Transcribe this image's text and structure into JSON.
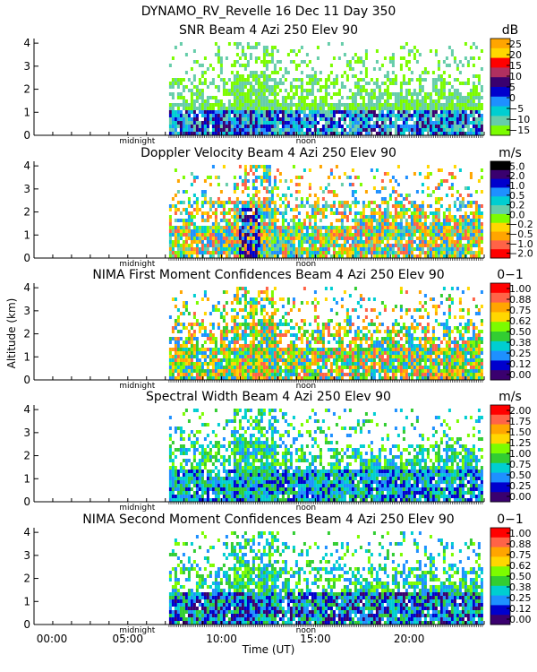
{
  "figure": {
    "title": "DYNAMO_RV_Revelle  16 Dec 11 Day 350",
    "ylabel": "Altitude (km)",
    "xlabel": "Time (UT)",
    "x_tick_labels": [
      "00:00",
      "05:00",
      "10:00",
      "15:00",
      "20:00"
    ],
    "x_marker_labels": [
      "midnight",
      "noon"
    ]
  },
  "chart_data": [
    {
      "type": "heatmap",
      "title": "SNR Beam 4 Azi 250 Elev 90",
      "unit": "dB",
      "y_ticks": [
        "0",
        "1",
        "2",
        "3",
        "4"
      ],
      "ylim": [
        0,
        4.2
      ],
      "xlim_hours": [
        0,
        24
      ],
      "data_start_hour": 7.2,
      "colorbar_labels": [
        "25",
        "20",
        "15",
        "10",
        "5",
        "0",
        "−5",
        "−10",
        "−15"
      ],
      "colorbar_colors": [
        "#ffa500",
        "#ffd700",
        "#ff0000",
        "#b03060",
        "#3a006f",
        "#0000cd",
        "#1e90ff",
        "#00ced1",
        "#66cdaa",
        "#7cfc00"
      ]
    },
    {
      "type": "heatmap",
      "title": "Doppler Velocity Beam 4 Azi 250 Elev 90",
      "unit": "m/s",
      "y_ticks": [
        "0",
        "1",
        "2",
        "3",
        "4"
      ],
      "ylim": [
        0,
        4.2
      ],
      "xlim_hours": [
        0,
        24
      ],
      "data_start_hour": 7.2,
      "colorbar_labels": [
        "5.0",
        "2.0",
        "1.0",
        "0.5",
        "0.2",
        "0.0",
        "−0.2",
        "−0.5",
        "−1.0",
        "−2.0"
      ],
      "colorbar_colors": [
        "#000000",
        "#3a006f",
        "#0000cd",
        "#1e90ff",
        "#00ced1",
        "#66cdaa",
        "#7cfc00",
        "#ffd700",
        "#ffa500",
        "#ff6347",
        "#ff0000"
      ]
    },
    {
      "type": "heatmap",
      "title": "NIMA First Moment Confidences Beam 4 Azi 250 Elev 90",
      "unit": "0−1",
      "y_ticks": [
        "0",
        "1",
        "2",
        "3",
        "4"
      ],
      "ylim": [
        0,
        4.2
      ],
      "xlim_hours": [
        0,
        24
      ],
      "data_start_hour": 7.2,
      "colorbar_labels": [
        "1.00",
        "0.88",
        "0.75",
        "0.62",
        "0.50",
        "0.38",
        "0.25",
        "0.12",
        "0.00"
      ],
      "colorbar_colors": [
        "#ff0000",
        "#ff6347",
        "#ffa500",
        "#ffd700",
        "#7cfc00",
        "#32cd32",
        "#00ced1",
        "#1e90ff",
        "#0000cd",
        "#3a006f"
      ]
    },
    {
      "type": "heatmap",
      "title": "Spectral Width Beam 4 Azi 250 Elev 90",
      "unit": "m/s",
      "y_ticks": [
        "0",
        "1",
        "2",
        "3",
        "4"
      ],
      "ylim": [
        0,
        4.2
      ],
      "xlim_hours": [
        0,
        24
      ],
      "data_start_hour": 7.2,
      "colorbar_labels": [
        "2.00",
        "1.75",
        "1.50",
        "1.25",
        "1.00",
        "0.75",
        "0.50",
        "0.25",
        "0.00"
      ],
      "colorbar_colors": [
        "#ff0000",
        "#ff6347",
        "#ffa500",
        "#ffd700",
        "#7cfc00",
        "#32cd32",
        "#00ced1",
        "#1e90ff",
        "#0000cd",
        "#3a006f"
      ]
    },
    {
      "type": "heatmap",
      "title": "NIMA Second Moment Confidences Beam 4 Azi 250 Elev 90",
      "unit": "0−1",
      "y_ticks": [
        "0",
        "1",
        "2",
        "3",
        "4"
      ],
      "ylim": [
        0,
        4.2
      ],
      "xlim_hours": [
        0,
        24
      ],
      "data_start_hour": 7.2,
      "colorbar_labels": [
        "1.00",
        "0.88",
        "0.75",
        "0.62",
        "0.50",
        "0.38",
        "0.25",
        "0.12",
        "0.00"
      ],
      "colorbar_colors": [
        "#ff0000",
        "#ff6347",
        "#ffa500",
        "#ffd700",
        "#7cfc00",
        "#32cd32",
        "#00ced1",
        "#1e90ff",
        "#0000cd",
        "#3a006f"
      ]
    }
  ]
}
